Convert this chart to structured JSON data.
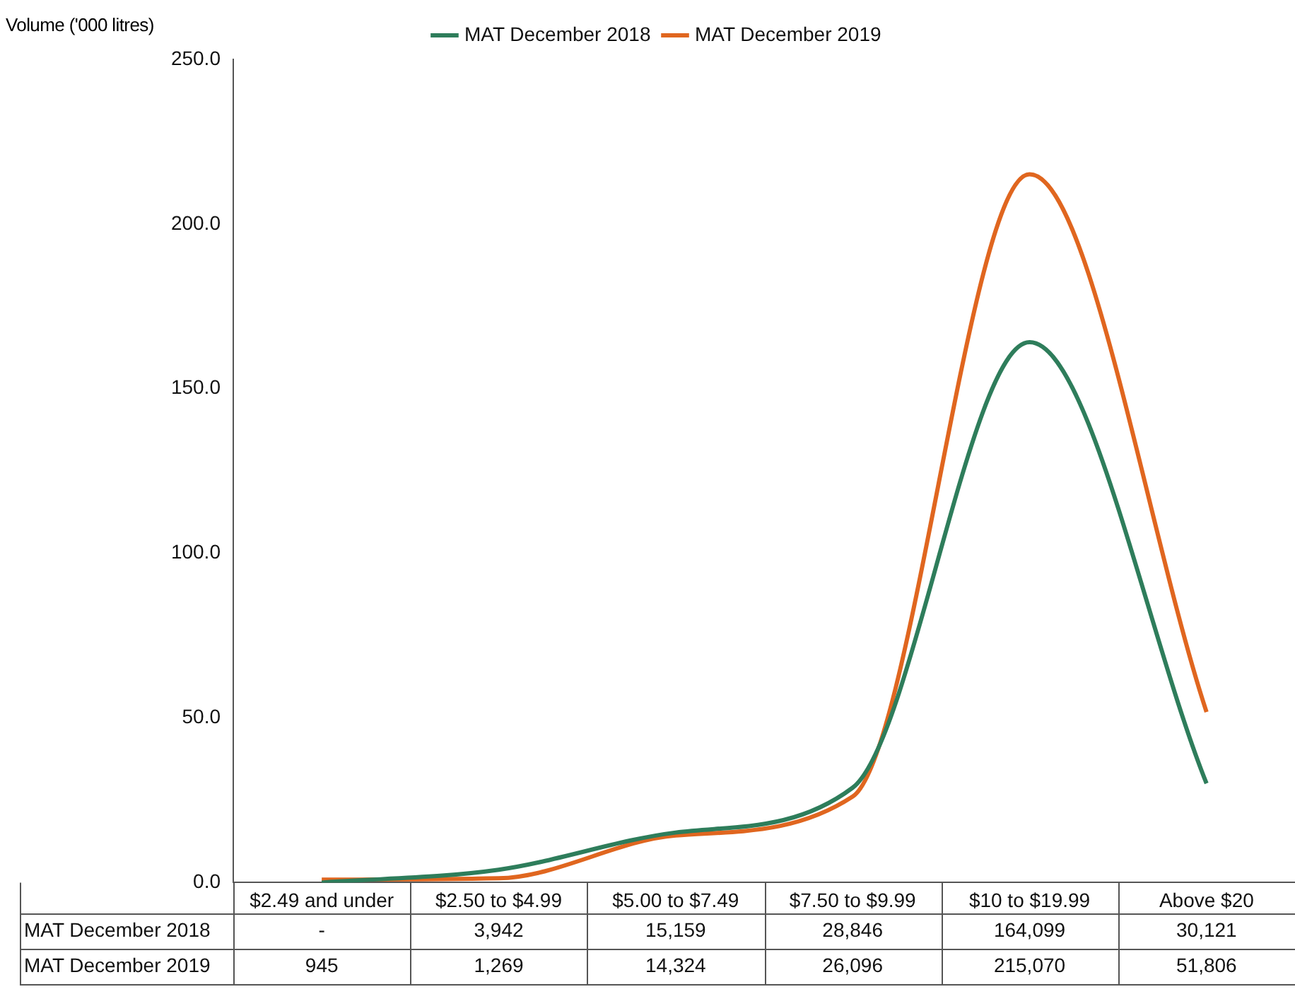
{
  "chart_data": {
    "type": "line",
    "ylabel": "Volume ('000 litres)",
    "categories": [
      "$2.49 and under",
      "$2.50 to $4.99",
      "$5.00 to $7.49",
      "$7.50 to $9.99",
      "$10 to $19.99",
      "Above $20"
    ],
    "series": [
      {
        "name": "MAT December 2018",
        "color": "#2e7d5b",
        "values": [
          0,
          3.9,
          15.2,
          28.8,
          164.1,
          30.1
        ]
      },
      {
        "name": "MAT December 2019",
        "color": "#e0661f",
        "values": [
          0.9,
          1.3,
          14.3,
          26.1,
          215.1,
          51.8
        ]
      }
    ],
    "annotations": [
      "-",
      "3,942",
      "15,159",
      "28,846",
      "164,099",
      "30,121",
      "945",
      "1,269",
      "14,324",
      "26,096",
      "215,070",
      "51,806"
    ],
    "ylim": [
      0,
      250
    ],
    "yticks": [
      {
        "value": 0,
        "label": "0.0"
      },
      {
        "value": 50,
        "label": "50.0"
      },
      {
        "value": 100,
        "label": "100.0"
      },
      {
        "value": 150,
        "label": "150.0"
      },
      {
        "value": 200,
        "label": "200.0"
      },
      {
        "value": 250,
        "label": "250.0"
      }
    ],
    "grid": false,
    "legend": "top",
    "marker": "none"
  }
}
